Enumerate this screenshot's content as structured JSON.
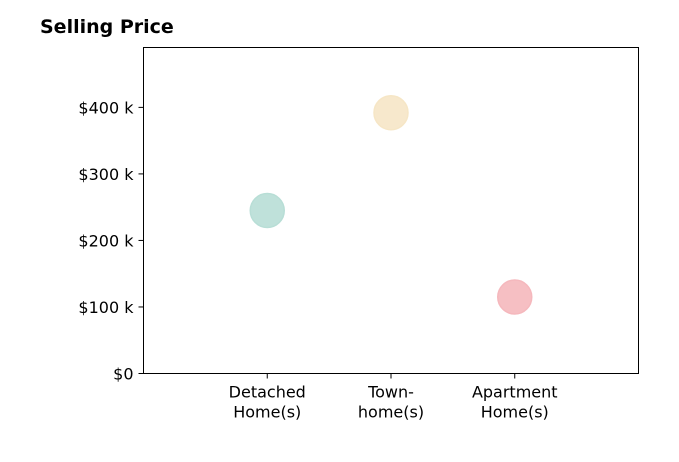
{
  "chart_data": {
    "type": "scatter",
    "title": "Selling Price",
    "xlabel": "",
    "ylabel": "",
    "categories": [
      [
        "Detached",
        "Home(s)"
      ],
      [
        "Town-",
        "home(s)"
      ],
      [
        "Apartment",
        "Home(s)"
      ]
    ],
    "values": [
      245000,
      392000,
      115000
    ],
    "colors": [
      "#b8ded6",
      "#f6e6c6",
      "#f5b8bd"
    ],
    "ylim": [
      0,
      490000
    ],
    "xlim": [
      -1,
      3
    ],
    "yticks": [
      0,
      100000,
      200000,
      300000,
      400000
    ],
    "ytick_labels": [
      "$0",
      "$100 k",
      "$200 k",
      "$300 k",
      "$400 k"
    ],
    "grid": false,
    "legend": "none"
  }
}
